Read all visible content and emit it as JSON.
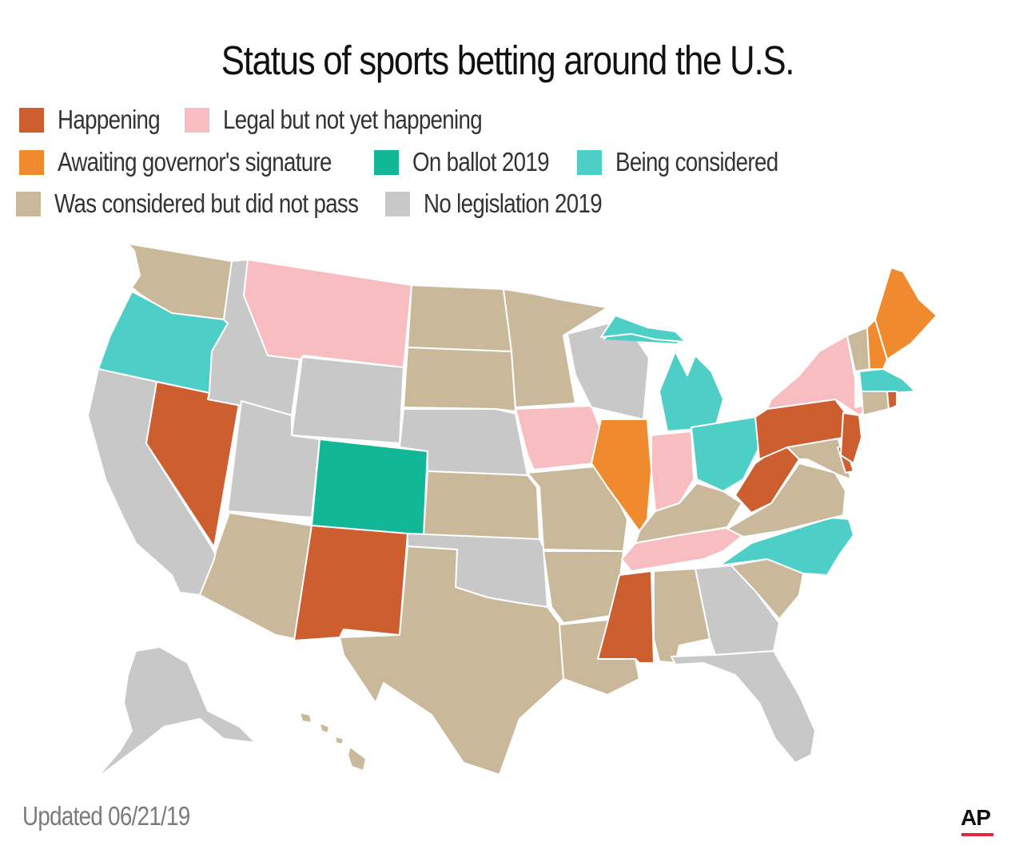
{
  "title": "Status of sports betting around the U.S.",
  "legend": [
    {
      "key": "happening",
      "label": "Happening",
      "color": "#cd5e30"
    },
    {
      "key": "legal",
      "label": "Legal but not yet happening",
      "color": "#f8bdc0"
    },
    {
      "key": "awaiting",
      "label": "Awaiting governor's signature",
      "color": "#f08a2e"
    },
    {
      "key": "ballot",
      "label": "On ballot 2019",
      "color": "#12b797"
    },
    {
      "key": "considered",
      "label": "Being considered",
      "color": "#4dcfc8"
    },
    {
      "key": "failed",
      "label": "Was considered but did not pass",
      "color": "#c9b899"
    },
    {
      "key": "none",
      "label": "No legislation 2019",
      "color": "#c8c8c8"
    }
  ],
  "state_status": {
    "WA": "failed",
    "OR": "considered",
    "CA": "none",
    "NV": "happening",
    "ID": "none",
    "MT": "legal",
    "WY": "none",
    "UT": "none",
    "AZ": "failed",
    "CO": "ballot",
    "NM": "happening",
    "ND": "failed",
    "SD": "failed",
    "NE": "none",
    "KS": "failed",
    "OK": "none",
    "TX": "failed",
    "MN": "failed",
    "IA": "legal",
    "MO": "failed",
    "AR": "failed",
    "LA": "failed",
    "WI": "none",
    "IL": "awaiting",
    "MI": "considered",
    "IN": "legal",
    "OH": "considered",
    "KY": "failed",
    "TN": "legal",
    "MS": "happening",
    "AL": "failed",
    "GA": "none",
    "FL": "none",
    "SC": "failed",
    "NC": "considered",
    "VA": "failed",
    "WV": "happening",
    "PA": "happening",
    "NY": "legal",
    "VT": "failed",
    "NH": "awaiting",
    "ME": "awaiting",
    "MA": "considered",
    "RI": "happening",
    "CT": "failed",
    "NJ": "happening",
    "DE": "happening",
    "MD": "failed",
    "AK": "none",
    "HI": "failed"
  },
  "footer": {
    "updated": "Updated 06/21/19",
    "source_logo": "AP"
  }
}
